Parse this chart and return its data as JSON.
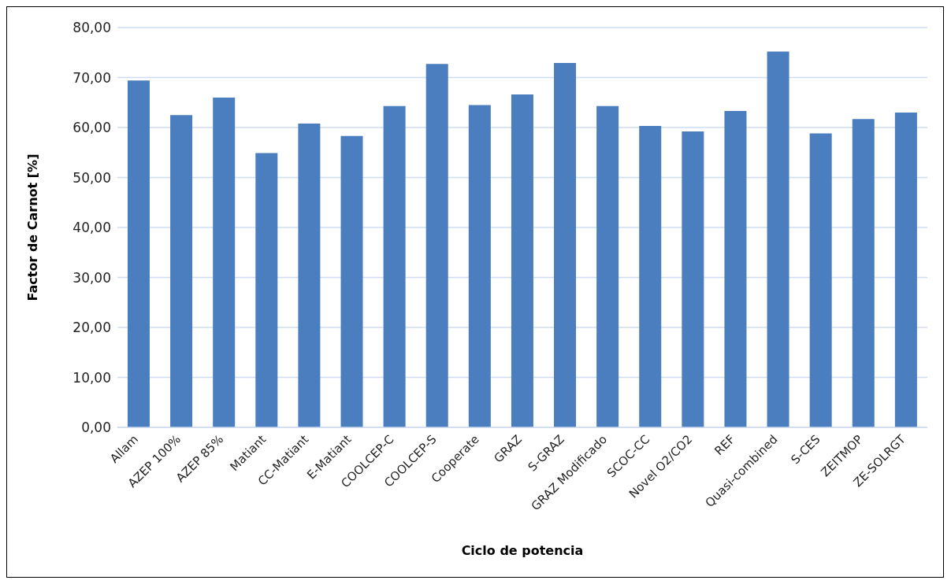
{
  "chart_data": {
    "type": "bar",
    "xlabel": "Ciclo de potencia",
    "ylabel": "Factor de Carnot [%]",
    "categories": [
      "Allam",
      "AZEP 100%",
      "AZEP 85%",
      "Matiant",
      "CC-Matiant",
      "E-Matiant",
      "COOLCEP-C",
      "COOLCEP-S",
      "Cooperate",
      "GRAZ",
      "S-GRAZ",
      "GRAZ Modificado",
      "SCOC-CC",
      "Novel O2/CO2",
      "REF",
      "Quasi-combined",
      "S-CES",
      "ZEITMOP",
      "ZE-SOLRGT"
    ],
    "values": [
      69.4,
      62.5,
      66.0,
      54.9,
      60.8,
      58.3,
      64.3,
      72.7,
      64.5,
      66.6,
      72.9,
      64.3,
      60.3,
      59.2,
      63.3,
      75.2,
      58.8,
      61.7,
      63.0
    ],
    "color": "#4a7ebf",
    "ylim": [
      0,
      80
    ],
    "yticks": [
      {
        "value": 0,
        "label": "0,00"
      },
      {
        "value": 10,
        "label": "10,00"
      },
      {
        "value": 20,
        "label": "20,00"
      },
      {
        "value": 30,
        "label": "30,00"
      },
      {
        "value": 40,
        "label": "40,00"
      },
      {
        "value": 50,
        "label": "50,00"
      },
      {
        "value": 60,
        "label": "60,00"
      },
      {
        "value": 70,
        "label": "70,00"
      },
      {
        "value": 80,
        "label": "80,00"
      }
    ],
    "grid": "y"
  }
}
